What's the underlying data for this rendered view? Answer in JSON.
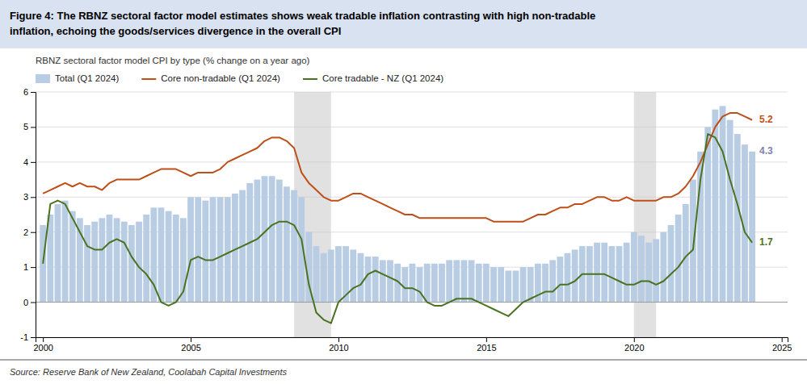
{
  "chart_data": {
    "type": "bar",
    "title": "Figure 4: The RBNZ sectoral factor model estimates shows weak tradable inflation contrasting with high non-tradable\ninflation, echoing the goods/services divergence in the overall CPI",
    "subtitle": "RBNZ sectoral factor model CPI by type  (% change on a year ago)",
    "source": "Source: Reserve Bank of New Zealand, Coolabah Capital Investments",
    "x": [
      2000.0,
      2000.25,
      2000.5,
      2000.75,
      2001.0,
      2001.25,
      2001.5,
      2001.75,
      2002.0,
      2002.25,
      2002.5,
      2002.75,
      2003.0,
      2003.25,
      2003.5,
      2003.75,
      2004.0,
      2004.25,
      2004.5,
      2004.75,
      2005.0,
      2005.25,
      2005.5,
      2005.75,
      2006.0,
      2006.25,
      2006.5,
      2006.75,
      2007.0,
      2007.25,
      2007.5,
      2007.75,
      2008.0,
      2008.25,
      2008.5,
      2008.75,
      2009.0,
      2009.25,
      2009.5,
      2009.75,
      2010.0,
      2010.25,
      2010.5,
      2010.75,
      2011.0,
      2011.25,
      2011.5,
      2011.75,
      2012.0,
      2012.25,
      2012.5,
      2012.75,
      2013.0,
      2013.25,
      2013.5,
      2013.75,
      2014.0,
      2014.25,
      2014.5,
      2014.75,
      2015.0,
      2015.25,
      2015.5,
      2015.75,
      2016.0,
      2016.25,
      2016.5,
      2016.75,
      2017.0,
      2017.25,
      2017.5,
      2017.75,
      2018.0,
      2018.25,
      2018.5,
      2018.75,
      2019.0,
      2019.25,
      2019.5,
      2019.75,
      2020.0,
      2020.25,
      2020.5,
      2020.75,
      2021.0,
      2021.25,
      2021.5,
      2021.75,
      2022.0,
      2022.25,
      2022.5,
      2022.75,
      2023.0,
      2023.25,
      2023.5,
      2023.75,
      2024.0
    ],
    "series": [
      {
        "name": "Total (Q1 2024)",
        "type": "bar",
        "color": "#b8cce4",
        "values": [
          2.2,
          2.5,
          2.8,
          2.9,
          2.6,
          2.4,
          2.2,
          2.3,
          2.4,
          2.5,
          2.4,
          2.3,
          2.2,
          2.3,
          2.5,
          2.7,
          2.7,
          2.6,
          2.5,
          2.4,
          3.0,
          3.0,
          2.9,
          3.0,
          3.0,
          3.0,
          3.1,
          3.2,
          3.4,
          3.5,
          3.6,
          3.6,
          3.5,
          3.3,
          3.2,
          3.0,
          2.0,
          1.6,
          1.4,
          1.5,
          1.6,
          1.6,
          1.5,
          1.4,
          1.3,
          1.3,
          1.2,
          1.2,
          1.1,
          1.0,
          1.1,
          1.0,
          1.1,
          1.1,
          1.1,
          1.2,
          1.2,
          1.2,
          1.2,
          1.1,
          1.1,
          1.0,
          1.0,
          0.9,
          0.9,
          1.0,
          1.0,
          1.1,
          1.1,
          1.2,
          1.3,
          1.4,
          1.5,
          1.6,
          1.6,
          1.7,
          1.7,
          1.6,
          1.6,
          1.7,
          2.0,
          1.9,
          1.7,
          1.8,
          2.0,
          2.2,
          2.5,
          2.8,
          3.5,
          4.3,
          5.0,
          5.5,
          5.6,
          5.2,
          4.8,
          4.5,
          4.3
        ]
      },
      {
        "name": "Core non-tradable (Q1 2024)",
        "type": "line",
        "color": "#bf4f18",
        "values": [
          3.1,
          3.2,
          3.3,
          3.4,
          3.3,
          3.4,
          3.3,
          3.3,
          3.2,
          3.4,
          3.5,
          3.5,
          3.5,
          3.5,
          3.6,
          3.7,
          3.8,
          3.8,
          3.8,
          3.7,
          3.6,
          3.7,
          3.7,
          3.7,
          3.8,
          4.0,
          4.1,
          4.2,
          4.3,
          4.4,
          4.6,
          4.7,
          4.7,
          4.6,
          4.4,
          3.7,
          3.4,
          3.2,
          3.0,
          2.9,
          2.9,
          3.0,
          3.1,
          3.1,
          3.0,
          2.9,
          2.8,
          2.7,
          2.6,
          2.5,
          2.5,
          2.4,
          2.4,
          2.4,
          2.4,
          2.4,
          2.4,
          2.4,
          2.4,
          2.4,
          2.4,
          2.3,
          2.3,
          2.3,
          2.3,
          2.3,
          2.4,
          2.5,
          2.5,
          2.6,
          2.7,
          2.7,
          2.8,
          2.8,
          2.9,
          3.0,
          3.0,
          2.9,
          2.9,
          3.0,
          2.9,
          2.9,
          2.9,
          2.9,
          3.0,
          3.0,
          3.1,
          3.3,
          3.6,
          4.0,
          4.5,
          5.0,
          5.3,
          5.4,
          5.4,
          5.3,
          5.2
        ]
      },
      {
        "name": "Core tradable - NZ (Q1 2024)",
        "type": "line",
        "color": "#4a7320",
        "values": [
          1.1,
          2.8,
          2.9,
          2.8,
          2.4,
          2.0,
          1.6,
          1.5,
          1.5,
          1.7,
          1.8,
          1.7,
          1.3,
          1.0,
          0.8,
          0.5,
          0.0,
          -0.1,
          0.0,
          0.3,
          1.2,
          1.3,
          1.2,
          1.2,
          1.3,
          1.4,
          1.5,
          1.6,
          1.7,
          1.8,
          2.0,
          2.2,
          2.3,
          2.3,
          2.2,
          1.8,
          0.5,
          -0.3,
          -0.5,
          -0.6,
          0.0,
          0.2,
          0.4,
          0.5,
          0.8,
          0.9,
          0.8,
          0.7,
          0.6,
          0.4,
          0.4,
          0.3,
          0.0,
          -0.1,
          -0.1,
          0.0,
          0.1,
          0.1,
          0.1,
          0.0,
          -0.1,
          -0.2,
          -0.3,
          -0.4,
          -0.2,
          0.0,
          0.1,
          0.2,
          0.3,
          0.3,
          0.5,
          0.5,
          0.6,
          0.8,
          0.8,
          0.8,
          0.8,
          0.7,
          0.6,
          0.5,
          0.5,
          0.6,
          0.6,
          0.5,
          0.6,
          0.8,
          1.0,
          1.3,
          1.5,
          3.5,
          4.8,
          4.7,
          4.3,
          3.5,
          2.8,
          2.0,
          1.7
        ]
      }
    ],
    "bands": {
      "color": "#c8c8c8",
      "ranges": [
        [
          2008.5,
          2009.75
        ],
        [
          2020.0,
          2020.75
        ]
      ]
    },
    "annotations": [
      {
        "label": "5.2",
        "y": 5.2,
        "color": "#bf4f18"
      },
      {
        "label": "1.7",
        "y": 1.7,
        "color": "#4a7320"
      },
      {
        "label": "4.3",
        "y": 4.3,
        "color": "#7f7faf"
      }
    ],
    "xlim": [
      1999.75,
      2025.2
    ],
    "xticks": [
      2000,
      2005,
      2010,
      2015,
      2020,
      2025
    ],
    "ylim": [
      -1.0,
      6.0
    ],
    "yticks": [
      -1,
      0,
      1,
      2,
      3,
      4,
      5,
      6
    ],
    "grid": true,
    "legend": "top"
  }
}
